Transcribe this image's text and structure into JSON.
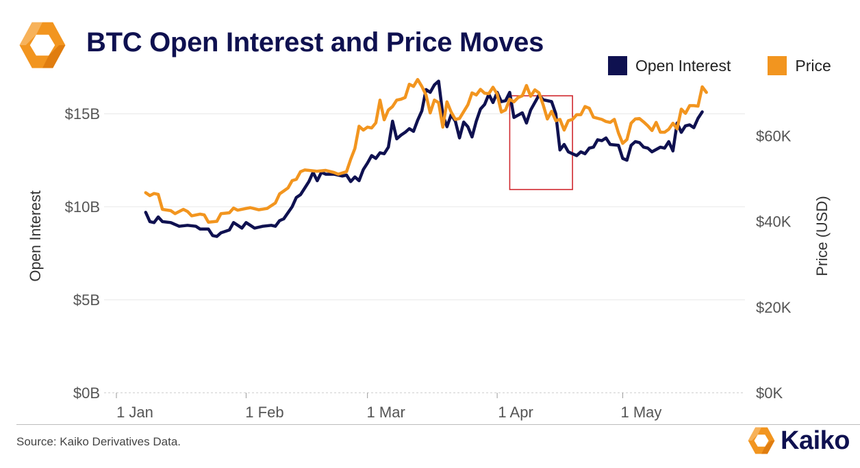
{
  "header": {
    "title": "BTC Open Interest and Price Moves",
    "logo_icon": "kaiko-hexagon-icon"
  },
  "legend": [
    {
      "label": "Open Interest",
      "color": "#0f1150"
    },
    {
      "label": "Price",
      "color": "#f2951f"
    }
  ],
  "footer": {
    "source": "Source: Kaiko Derivatives Data.",
    "brand": "Kaiko",
    "brand_icon": "kaiko-hexagon-icon"
  },
  "chart_data": {
    "type": "line",
    "title": "BTC Open Interest and Price Moves",
    "ylabel_left": "Open Interest",
    "ylabel_right": "Price (USD)",
    "x_ticks": [
      "1 Jan",
      "1 Feb",
      "1 Mar",
      "1 Apr",
      "1 May"
    ],
    "x_tick_dates": [
      "2024-01-01",
      "2024-02-01",
      "2024-03-01",
      "2024-04-01",
      "2024-05-01"
    ],
    "y_left_ticks": [
      "$0B",
      "$5B",
      "$10B",
      "$15B"
    ],
    "y_left_tick_values": [
      0,
      5,
      10,
      15
    ],
    "y_right_ticks": [
      "$0K",
      "$20K",
      "$40K",
      "$60K"
    ],
    "y_right_tick_values": [
      0,
      20000,
      40000,
      60000
    ],
    "ylim_left": [
      0,
      16.7
    ],
    "ylim_right": [
      0,
      72500
    ],
    "grid": true,
    "legend_position": "top-right",
    "highlight": {
      "x_start": "2024-04-04",
      "x_end": "2024-04-19",
      "color": "#d0282e"
    },
    "series": [
      {
        "name": "Open Interest",
        "axis": "left",
        "color": "#0f1150",
        "points": [
          [
            "2024-01-08",
            9.7
          ],
          [
            "2024-01-09",
            9.2
          ],
          [
            "2024-01-10",
            9.15
          ],
          [
            "2024-01-11",
            9.45
          ],
          [
            "2024-01-12",
            9.2
          ],
          [
            "2024-01-14",
            9.15
          ],
          [
            "2024-01-16",
            8.95
          ],
          [
            "2024-01-18",
            9.0
          ],
          [
            "2024-01-20",
            8.95
          ],
          [
            "2024-01-21",
            8.8
          ],
          [
            "2024-01-23",
            8.8
          ],
          [
            "2024-01-24",
            8.45
          ],
          [
            "2024-01-25",
            8.4
          ],
          [
            "2024-01-26",
            8.6
          ],
          [
            "2024-01-28",
            8.75
          ],
          [
            "2024-01-29",
            9.15
          ],
          [
            "2024-01-30",
            9.0
          ],
          [
            "2024-01-31",
            8.85
          ],
          [
            "2024-02-01",
            9.15
          ],
          [
            "2024-02-02",
            9.0
          ],
          [
            "2024-02-03",
            8.85
          ],
          [
            "2024-02-05",
            8.95
          ],
          [
            "2024-02-07",
            9.0
          ],
          [
            "2024-02-08",
            8.95
          ],
          [
            "2024-02-09",
            9.25
          ],
          [
            "2024-02-10",
            9.35
          ],
          [
            "2024-02-12",
            10.0
          ],
          [
            "2024-02-13",
            10.5
          ],
          [
            "2024-02-14",
            10.65
          ],
          [
            "2024-02-15",
            11.0
          ],
          [
            "2024-02-16",
            11.35
          ],
          [
            "2024-02-17",
            11.85
          ],
          [
            "2024-02-18",
            11.4
          ],
          [
            "2024-02-19",
            11.85
          ],
          [
            "2024-02-20",
            11.75
          ],
          [
            "2024-02-22",
            11.75
          ],
          [
            "2024-02-24",
            11.65
          ],
          [
            "2024-02-25",
            11.7
          ],
          [
            "2024-02-26",
            11.35
          ],
          [
            "2024-02-27",
            11.6
          ],
          [
            "2024-02-28",
            11.4
          ],
          [
            "2024-02-29",
            12.0
          ],
          [
            "2024-03-01",
            12.35
          ],
          [
            "2024-03-02",
            12.75
          ],
          [
            "2024-03-03",
            12.6
          ],
          [
            "2024-03-04",
            12.9
          ],
          [
            "2024-03-05",
            12.85
          ],
          [
            "2024-03-06",
            13.2
          ],
          [
            "2024-03-07",
            14.6
          ],
          [
            "2024-03-08",
            13.65
          ],
          [
            "2024-03-09",
            13.85
          ],
          [
            "2024-03-10",
            14.0
          ],
          [
            "2024-03-11",
            14.2
          ],
          [
            "2024-03-12",
            14.05
          ],
          [
            "2024-03-13",
            14.65
          ],
          [
            "2024-03-14",
            15.15
          ],
          [
            "2024-03-15",
            16.3
          ],
          [
            "2024-03-16",
            16.15
          ],
          [
            "2024-03-17",
            16.55
          ],
          [
            "2024-03-18",
            16.75
          ],
          [
            "2024-03-19",
            14.95
          ],
          [
            "2024-03-20",
            14.3
          ],
          [
            "2024-03-21",
            14.95
          ],
          [
            "2024-03-22",
            14.6
          ],
          [
            "2024-03-23",
            13.7
          ],
          [
            "2024-03-24",
            14.55
          ],
          [
            "2024-03-25",
            14.3
          ],
          [
            "2024-03-26",
            13.75
          ],
          [
            "2024-03-27",
            14.6
          ],
          [
            "2024-03-28",
            15.25
          ],
          [
            "2024-03-29",
            15.5
          ],
          [
            "2024-03-30",
            16.05
          ],
          [
            "2024-03-31",
            15.6
          ],
          [
            "2024-04-01",
            16.15
          ],
          [
            "2024-04-02",
            15.65
          ],
          [
            "2024-04-03",
            15.7
          ],
          [
            "2024-04-04",
            16.15
          ],
          [
            "2024-04-05",
            14.8
          ],
          [
            "2024-04-07",
            15.05
          ],
          [
            "2024-04-08",
            14.5
          ],
          [
            "2024-04-09",
            15.2
          ],
          [
            "2024-04-11",
            16.0
          ],
          [
            "2024-04-12",
            15.75
          ],
          [
            "2024-04-14",
            15.65
          ],
          [
            "2024-04-15",
            15.0
          ],
          [
            "2024-04-16",
            13.05
          ],
          [
            "2024-04-17",
            13.35
          ],
          [
            "2024-04-18",
            12.95
          ],
          [
            "2024-04-20",
            12.75
          ],
          [
            "2024-04-21",
            12.95
          ],
          [
            "2024-04-22",
            12.85
          ],
          [
            "2024-04-23",
            13.15
          ],
          [
            "2024-04-24",
            13.2
          ],
          [
            "2024-04-25",
            13.6
          ],
          [
            "2024-04-26",
            13.55
          ],
          [
            "2024-04-27",
            13.7
          ],
          [
            "2024-04-28",
            13.35
          ],
          [
            "2024-04-30",
            13.3
          ],
          [
            "2024-05-01",
            12.6
          ],
          [
            "2024-05-02",
            12.5
          ],
          [
            "2024-05-03",
            13.3
          ],
          [
            "2024-05-04",
            13.5
          ],
          [
            "2024-05-05",
            13.45
          ],
          [
            "2024-05-06",
            13.2
          ],
          [
            "2024-05-07",
            13.15
          ],
          [
            "2024-05-08",
            12.95
          ],
          [
            "2024-05-10",
            13.2
          ],
          [
            "2024-05-11",
            13.15
          ],
          [
            "2024-05-12",
            13.5
          ],
          [
            "2024-05-13",
            13.0
          ],
          [
            "2024-05-14",
            14.5
          ],
          [
            "2024-05-15",
            14.0
          ],
          [
            "2024-05-16",
            14.35
          ],
          [
            "2024-05-17",
            14.4
          ],
          [
            "2024-05-18",
            14.25
          ],
          [
            "2024-05-19",
            14.75
          ],
          [
            "2024-05-20",
            15.1
          ]
        ]
      },
      {
        "name": "Price",
        "axis": "right",
        "color": "#f2951f",
        "points": [
          [
            "2024-01-08",
            46700
          ],
          [
            "2024-01-09",
            46000
          ],
          [
            "2024-01-10",
            46500
          ],
          [
            "2024-01-11",
            46300
          ],
          [
            "2024-01-12",
            42800
          ],
          [
            "2024-01-14",
            42500
          ],
          [
            "2024-01-15",
            41800
          ],
          [
            "2024-01-17",
            42800
          ],
          [
            "2024-01-18",
            42300
          ],
          [
            "2024-01-19",
            41300
          ],
          [
            "2024-01-21",
            41700
          ],
          [
            "2024-01-22",
            41500
          ],
          [
            "2024-01-23",
            39800
          ],
          [
            "2024-01-25",
            40000
          ],
          [
            "2024-01-26",
            41800
          ],
          [
            "2024-01-28",
            42000
          ],
          [
            "2024-01-29",
            43100
          ],
          [
            "2024-01-30",
            42600
          ],
          [
            "2024-02-01",
            43000
          ],
          [
            "2024-02-02",
            43200
          ],
          [
            "2024-02-04",
            42700
          ],
          [
            "2024-02-06",
            43000
          ],
          [
            "2024-02-08",
            44300
          ],
          [
            "2024-02-09",
            46400
          ],
          [
            "2024-02-10",
            47100
          ],
          [
            "2024-02-11",
            47800
          ],
          [
            "2024-02-12",
            49500
          ],
          [
            "2024-02-13",
            49800
          ],
          [
            "2024-02-14",
            51600
          ],
          [
            "2024-02-15",
            52000
          ],
          [
            "2024-02-16",
            51900
          ],
          [
            "2024-02-18",
            51700
          ],
          [
            "2024-02-20",
            51900
          ],
          [
            "2024-02-22",
            51400
          ],
          [
            "2024-02-23",
            51000
          ],
          [
            "2024-02-25",
            51600
          ],
          [
            "2024-02-26",
            54500
          ],
          [
            "2024-02-27",
            57000
          ],
          [
            "2024-02-28",
            62200
          ],
          [
            "2024-02-29",
            61300
          ],
          [
            "2024-03-01",
            62000
          ],
          [
            "2024-03-02",
            61800
          ],
          [
            "2024-03-03",
            63000
          ],
          [
            "2024-03-04",
            68300
          ],
          [
            "2024-03-05",
            63700
          ],
          [
            "2024-03-06",
            66000
          ],
          [
            "2024-03-07",
            66800
          ],
          [
            "2024-03-08",
            68300
          ],
          [
            "2024-03-09",
            68500
          ],
          [
            "2024-03-10",
            68900
          ],
          [
            "2024-03-11",
            72000
          ],
          [
            "2024-03-12",
            71500
          ],
          [
            "2024-03-13",
            73100
          ],
          [
            "2024-03-14",
            71500
          ],
          [
            "2024-03-15",
            69500
          ],
          [
            "2024-03-16",
            65300
          ],
          [
            "2024-03-17",
            68300
          ],
          [
            "2024-03-18",
            67700
          ],
          [
            "2024-03-19",
            62000
          ],
          [
            "2024-03-20",
            67900
          ],
          [
            "2024-03-21",
            65500
          ],
          [
            "2024-03-22",
            63800
          ],
          [
            "2024-03-23",
            64000
          ],
          [
            "2024-03-25",
            67200
          ],
          [
            "2024-03-26",
            70000
          ],
          [
            "2024-03-27",
            69500
          ],
          [
            "2024-03-28",
            70800
          ],
          [
            "2024-03-29",
            69900
          ],
          [
            "2024-03-30",
            69800
          ],
          [
            "2024-03-31",
            71300
          ],
          [
            "2024-04-01",
            69700
          ],
          [
            "2024-04-02",
            65500
          ],
          [
            "2024-04-03",
            66000
          ],
          [
            "2024-04-04",
            68500
          ],
          [
            "2024-04-05",
            67900
          ],
          [
            "2024-04-06",
            68900
          ],
          [
            "2024-04-07",
            69300
          ],
          [
            "2024-04-08",
            71700
          ],
          [
            "2024-04-09",
            69200
          ],
          [
            "2024-04-10",
            70700
          ],
          [
            "2024-04-11",
            70000
          ],
          [
            "2024-04-12",
            67200
          ],
          [
            "2024-04-13",
            63900
          ],
          [
            "2024-04-14",
            65700
          ],
          [
            "2024-04-15",
            63500
          ],
          [
            "2024-04-16",
            63800
          ],
          [
            "2024-04-17",
            61300
          ],
          [
            "2024-04-18",
            63500
          ],
          [
            "2024-04-19",
            63800
          ],
          [
            "2024-04-20",
            64900
          ],
          [
            "2024-04-21",
            64900
          ],
          [
            "2024-04-22",
            66800
          ],
          [
            "2024-04-23",
            66400
          ],
          [
            "2024-04-24",
            64300
          ],
          [
            "2024-04-26",
            63800
          ],
          [
            "2024-04-27",
            63300
          ],
          [
            "2024-04-28",
            63100
          ],
          [
            "2024-04-29",
            63800
          ],
          [
            "2024-04-30",
            60600
          ],
          [
            "2024-05-01",
            58200
          ],
          [
            "2024-05-02",
            59100
          ],
          [
            "2024-05-03",
            62900
          ],
          [
            "2024-05-04",
            63900
          ],
          [
            "2024-05-05",
            64000
          ],
          [
            "2024-05-06",
            63200
          ],
          [
            "2024-05-07",
            62300
          ],
          [
            "2024-05-08",
            61200
          ],
          [
            "2024-05-09",
            63100
          ],
          [
            "2024-05-10",
            60800
          ],
          [
            "2024-05-11",
            60800
          ],
          [
            "2024-05-12",
            61500
          ],
          [
            "2024-05-13",
            62900
          ],
          [
            "2024-05-14",
            61600
          ],
          [
            "2024-05-15",
            66200
          ],
          [
            "2024-05-16",
            65200
          ],
          [
            "2024-05-17",
            67000
          ],
          [
            "2024-05-18",
            67000
          ],
          [
            "2024-05-19",
            66900
          ],
          [
            "2024-05-20",
            71400
          ],
          [
            "2024-05-21",
            70100
          ]
        ]
      }
    ]
  }
}
